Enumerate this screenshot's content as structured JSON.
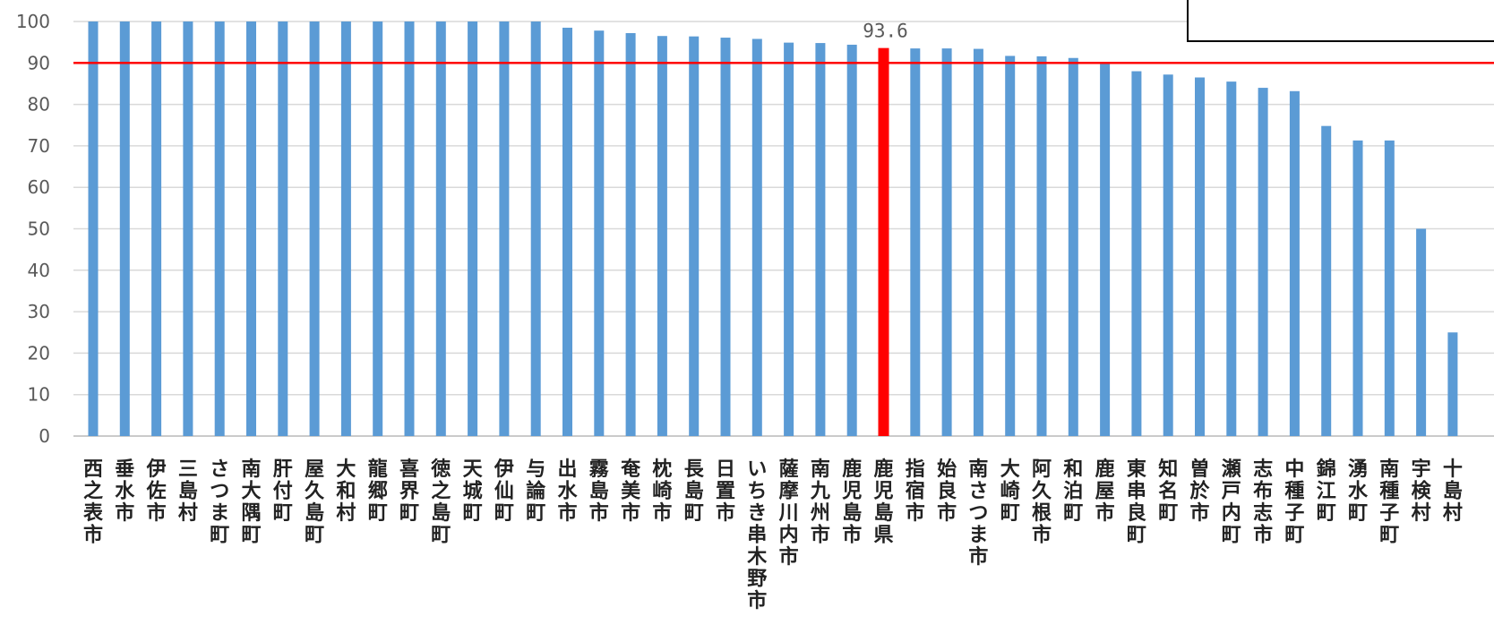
{
  "chart_data": {
    "type": "bar",
    "categories": [
      "西之表市",
      "垂水市",
      "伊佐市",
      "三島村",
      "さつま町",
      "南大隅町",
      "肝付町",
      "屋久島町",
      "大和村",
      "龍郷町",
      "喜界町",
      "徳之島町",
      "天城町",
      "伊仙町",
      "与論町",
      "出水市",
      "霧島市",
      "奄美市",
      "枕崎市",
      "長島町",
      "日置市",
      "いちき串木野市",
      "薩摩川内市",
      "南九州市",
      "鹿児島市",
      "鹿児島県",
      "指宿市",
      "始良市",
      "南さつま市",
      "大崎町",
      "阿久根市",
      "和泊町",
      "鹿屋市",
      "東串良町",
      "知名町",
      "曽於市",
      "瀬戸内町",
      "志布志市",
      "中種子町",
      "錦江町",
      "湧水町",
      "南種子町",
      "宇検村",
      "十島村"
    ],
    "values": [
      100,
      100,
      100,
      100,
      100,
      100,
      100,
      100,
      100,
      100,
      100,
      100,
      100,
      100,
      100,
      98.5,
      97.8,
      97.2,
      96.5,
      96.4,
      96.1,
      95.8,
      94.9,
      94.8,
      94.4,
      93.6,
      93.5,
      93.5,
      93.4,
      91.7,
      91.6,
      91.2,
      90.1,
      88.0,
      87.2,
      86.5,
      85.5,
      84.0,
      83.2,
      74.8,
      71.3,
      71.3,
      50.0,
      25.0
    ],
    "highlight": {
      "category": "鹿児島県",
      "color": "#ff0000",
      "label": "93.6"
    },
    "reference_line": {
      "value": 90,
      "color": "#ff0000"
    },
    "ylim": [
      0,
      100
    ],
    "yticks": [
      0,
      10,
      20,
      30,
      40,
      50,
      60,
      70,
      80,
      90,
      100
    ],
    "title": "",
    "xlabel": "",
    "ylabel": "",
    "grid": true,
    "legend_box": "top-right",
    "colors": {
      "bar": "#5b9bd5",
      "highlight": "#ff0000",
      "reference": "#ff0000",
      "grid": "#d9d9d9"
    }
  }
}
